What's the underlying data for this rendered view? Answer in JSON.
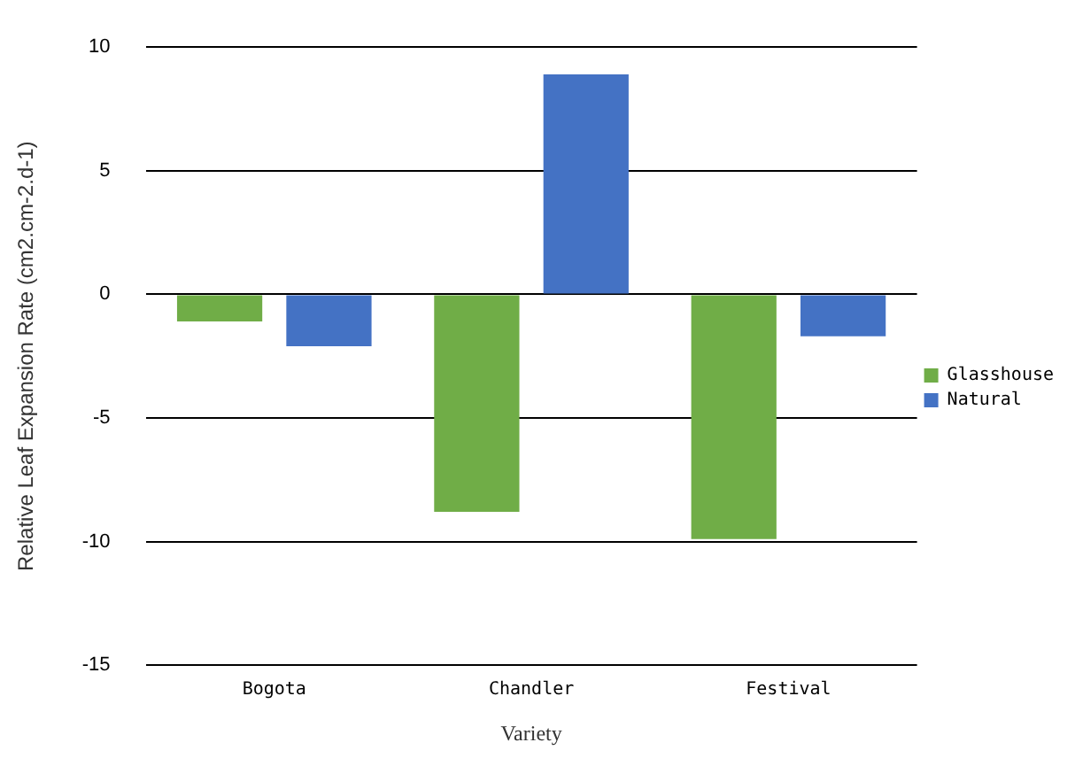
{
  "chart_data": {
    "type": "bar",
    "xlabel": "Variety",
    "ylabel": "Relative Leaf Expansion Rate (cm2.cm-2.d-1)",
    "categories": [
      "Bogota",
      "Chandler",
      "Festival"
    ],
    "series": [
      {
        "name": "Glasshouse",
        "color": "#70ad47",
        "values": [
          -1.1,
          -8.8,
          -9.9
        ]
      },
      {
        "name": "Natural",
        "color": "#4472c4",
        "values": [
          -2.1,
          8.9,
          -1.7
        ]
      }
    ],
    "ylim": [
      -15,
      10
    ],
    "yticks": [
      -15,
      -10,
      -5,
      0,
      5,
      10
    ],
    "grid": "y",
    "legend": "right"
  }
}
